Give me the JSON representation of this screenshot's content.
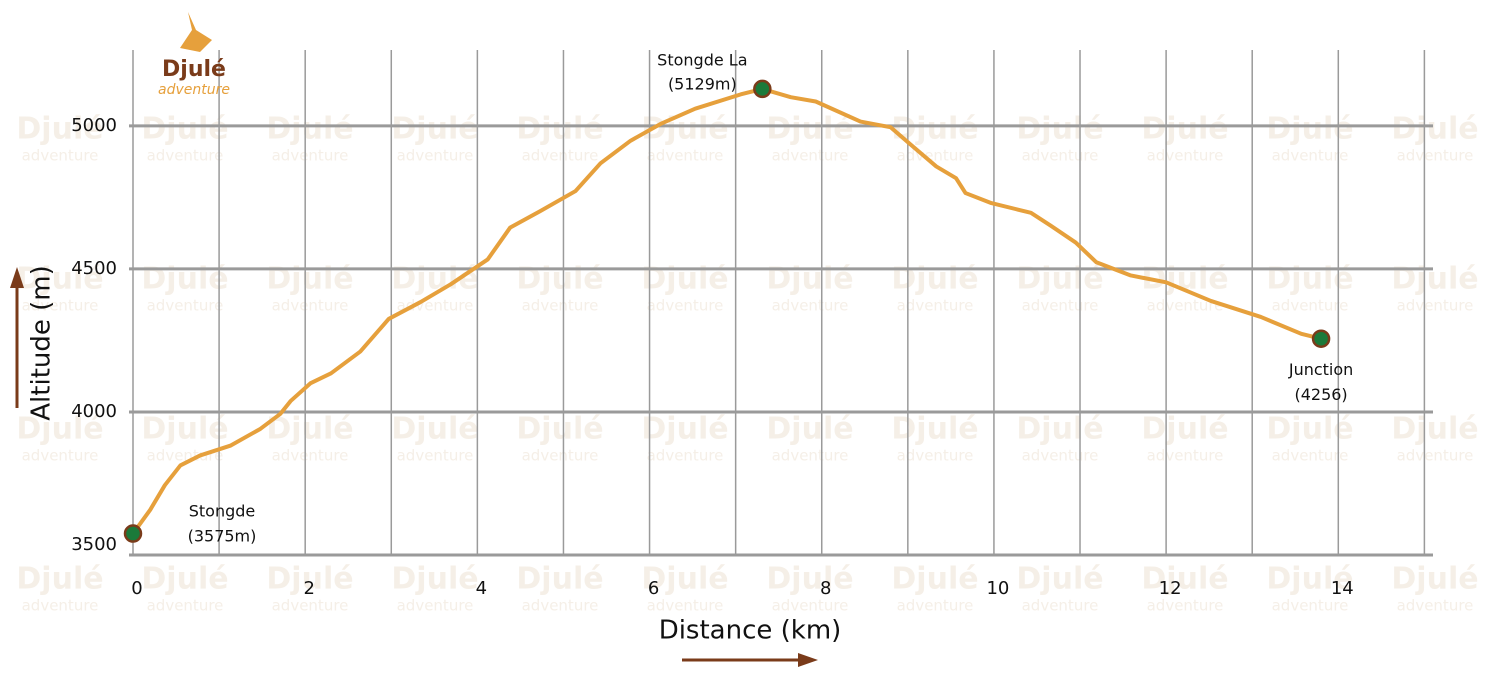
{
  "logo": {
    "name": "Djulé",
    "tagline": "adventure"
  },
  "chart_data": {
    "type": "line",
    "xlabel": "Distance (km)",
    "ylabel": "Altitude (m)",
    "x": [
      0,
      0.2,
      0.37,
      0.55,
      0.78,
      1.13,
      1.48,
      1.71,
      1.83,
      2.06,
      2.3,
      2.64,
      2.97,
      3.34,
      3.69,
      4.12,
      4.38,
      4.73,
      5.14,
      5.43,
      5.78,
      6.13,
      6.53,
      7.06,
      7.31,
      7.64,
      7.93,
      8.45,
      8.8,
      9.03,
      9.33,
      9.56,
      9.67,
      9.97,
      10.43,
      10.66,
      10.95,
      11.19,
      11.59,
      12.0,
      12.52,
      13.1,
      13.57,
      13.8
    ],
    "values": [
      3575,
      3658,
      3744,
      3813,
      3848,
      3882,
      3941,
      3993,
      4038,
      4100,
      4135,
      4211,
      4325,
      4384,
      4446,
      4533,
      4644,
      4702,
      4772,
      4869,
      4948,
      5007,
      5060,
      5110,
      5129,
      5100,
      5085,
      5015,
      4995,
      4935,
      4858,
      4817,
      4765,
      4730,
      4696,
      4651,
      4592,
      4523,
      4477,
      4453,
      4388,
      4332,
      4273,
      4256
    ],
    "color": "#e6a03c",
    "markers": [
      {
        "x": 0,
        "y": 3575,
        "name": "Stongde",
        "label": "(3575m)"
      },
      {
        "x": 7.31,
        "y": 5129,
        "name": "Stongde La",
        "label": "(5129m)"
      },
      {
        "x": 13.8,
        "y": 4256,
        "name": "Junction",
        "label": "(4256)"
      }
    ],
    "marker_color": "#1b7a3a",
    "xlim": [
      0,
      15.1
    ],
    "ylim": [
      3500,
      5265
    ],
    "xticks": [
      0,
      2,
      4,
      6,
      8,
      10,
      12,
      14
    ],
    "x_grid": [
      0,
      1,
      2,
      3,
      4,
      5,
      6,
      7,
      8,
      9,
      10,
      11,
      12,
      13,
      14,
      15
    ],
    "yticks": [
      3500,
      4000,
      4500,
      5000
    ],
    "grid": true
  }
}
